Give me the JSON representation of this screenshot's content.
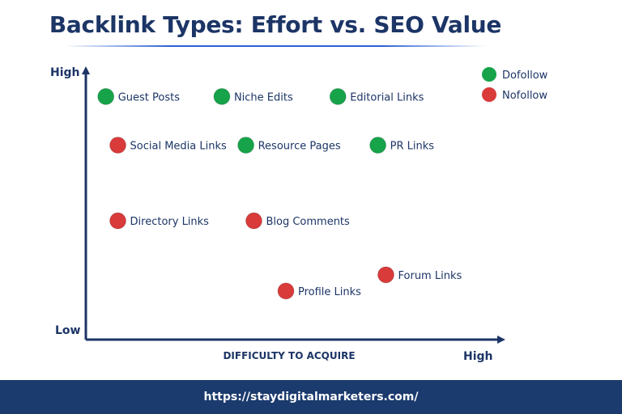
{
  "title": "Backlink Types: Effort vs. SEO Value",
  "footer": {
    "url": "https://staydigitalmarketers.com/"
  },
  "colors": {
    "dofollow": "#16a34a",
    "nofollow": "#d93a3a",
    "axis": "#1c3566",
    "text": "#1c3566"
  },
  "chart_data": {
    "type": "scatter",
    "title": "Backlink Types: Effort vs. SEO Value",
    "xlabel": "DIFFICULTY TO ACQUIRE",
    "ylabel": "",
    "x_tick_labels": {
      "high": "High"
    },
    "y_tick_labels": {
      "high": "High",
      "low": "Low"
    },
    "xlim": [
      0,
      10
    ],
    "ylim": [
      0,
      10
    ],
    "grid": false,
    "legend_position": "top-right",
    "series": [
      {
        "name": "Dofollow",
        "points": [
          {
            "label": "Guest Posts",
            "x": 0.5,
            "y": 9.0
          },
          {
            "label": "Niche Edits",
            "x": 3.4,
            "y": 9.0
          },
          {
            "label": "Editorial Links",
            "x": 6.3,
            "y": 9.0
          },
          {
            "label": "Resource Pages",
            "x": 4.0,
            "y": 7.2
          },
          {
            "label": "PR Links",
            "x": 7.3,
            "y": 7.2
          }
        ]
      },
      {
        "name": "Nofollow",
        "points": [
          {
            "label": "Social Media Links",
            "x": 0.8,
            "y": 7.2
          },
          {
            "label": "Directory Links",
            "x": 0.8,
            "y": 4.4
          },
          {
            "label": "Blog Comments",
            "x": 4.2,
            "y": 4.4
          },
          {
            "label": "Forum Links",
            "x": 7.5,
            "y": 2.4
          },
          {
            "label": "Profile Links",
            "x": 5.0,
            "y": 1.8
          }
        ]
      }
    ]
  }
}
